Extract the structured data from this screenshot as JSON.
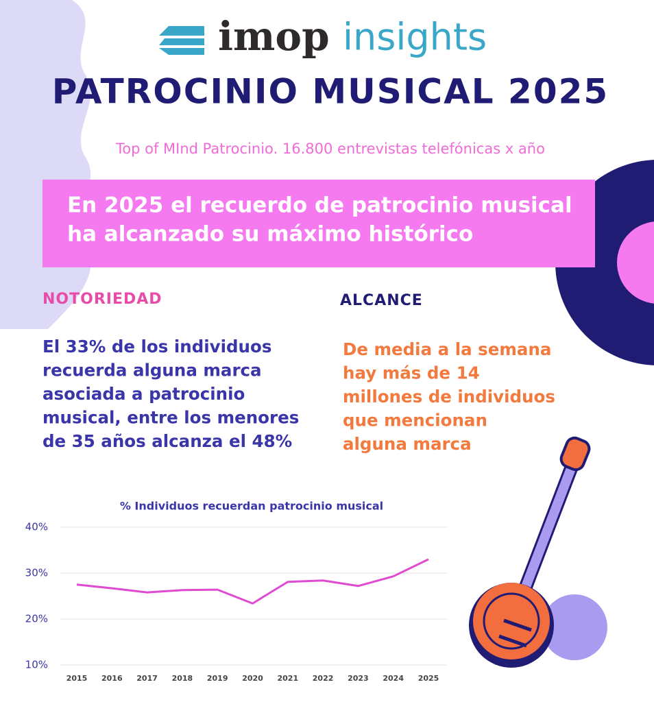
{
  "header": {
    "brand_main": "imop",
    "brand_sub": "insights",
    "title": "PATROCINIO MUSICAL 2025",
    "subtitle": "Top of MInd Patrocinio. 16.800 entrevistas telefónicas x año"
  },
  "banner": {
    "lines": [
      "En 2025 el recuerdo de patrocinio musical",
      "ha alcanzado su máximo histórico"
    ]
  },
  "notoriedad": {
    "heading": "NOTORIEDAD",
    "lines": [
      "El 33% de los individuos",
      "recuerda alguna marca",
      "asociada a patrocinio",
      "musical, entre los menores",
      "de 35 años alcanza el 48%"
    ]
  },
  "alcance": {
    "heading": "ALCANCE",
    "lines": [
      "De media a la semana",
      "hay más de 14",
      "millones de individuos",
      "que mencionan",
      "alguna marca"
    ]
  },
  "chart_data": {
    "type": "line",
    "title": "% Individuos recuerdan patrocinio musical",
    "categories": [
      "2015",
      "2016",
      "2017",
      "2018",
      "2019",
      "2020",
      "2021",
      "2022",
      "2023",
      "2024",
      "2025"
    ],
    "series": [
      {
        "name": "% Individuos",
        "color": "#e04ad0",
        "values": [
          27.5,
          26.7,
          25.8,
          26.3,
          26.4,
          23.4,
          28.1,
          28.4,
          27.2,
          29.3,
          33.0
        ]
      }
    ],
    "ylim": [
      10,
      40
    ],
    "yticks": [
      {
        "value": 10,
        "label": "10%"
      },
      {
        "value": 20,
        "label": "20%"
      },
      {
        "value": 30,
        "label": "30%"
      },
      {
        "value": 40,
        "label": "40%"
      }
    ],
    "grid": true
  }
}
